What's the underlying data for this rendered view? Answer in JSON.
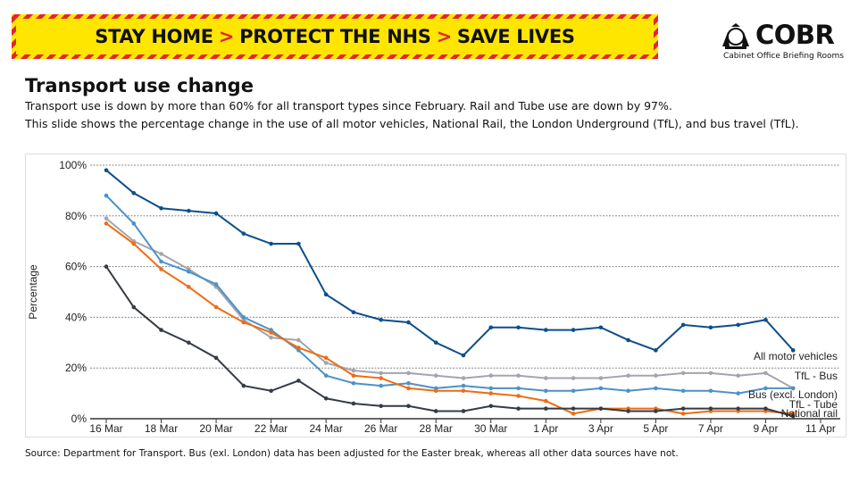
{
  "banner": {
    "part1": "STAY HOME",
    "part2": "PROTECT THE NHS",
    "part3": "SAVE LIVES",
    "separator": ">"
  },
  "logo": {
    "title": "COBR",
    "subtitle": "Cabinet Office Briefing Rooms"
  },
  "header": {
    "title": "Transport use change",
    "line1": "Transport use is down by more than 60% for all transport types since February. Rail and Tube use are down by 97%.",
    "line2": "This slide shows the percentage change in the use of all motor vehicles, National Rail, the London Underground (TfL), and bus travel (TfL)."
  },
  "source": "Source: Department for Transport. Bus (exl. London) data has been adjusted for the Easter break, whereas all other data sources have not.",
  "chart_data": {
    "type": "line",
    "title": "",
    "xlabel": "",
    "ylabel": "Percentage",
    "ylim": [
      0,
      100
    ],
    "yticks": [
      "0%",
      "20%",
      "40%",
      "60%",
      "80%",
      "100%"
    ],
    "xticks": [
      "16 Mar",
      "18 Mar",
      "20 Mar",
      "22 Mar",
      "24 Mar",
      "26 Mar",
      "28 Mar",
      "30 Mar",
      "1 Apr",
      "3 Apr",
      "5 Apr",
      "7 Apr",
      "9 Apr",
      "11 Apr"
    ],
    "grid": true,
    "x": [
      "16 Mar",
      "17 Mar",
      "18 Mar",
      "19 Mar",
      "20 Mar",
      "21 Mar",
      "22 Mar",
      "23 Mar",
      "24 Mar",
      "25 Mar",
      "26 Mar",
      "27 Mar",
      "28 Mar",
      "29 Mar",
      "30 Mar",
      "31 Mar",
      "1 Apr",
      "2 Apr",
      "3 Apr",
      "4 Apr",
      "5 Apr",
      "6 Apr",
      "7 Apr",
      "8 Apr",
      "9 Apr",
      "10 Apr"
    ],
    "series": [
      {
        "name": "All motor vehicles",
        "color": "#0d4e8b",
        "values": [
          98,
          89,
          83,
          82,
          81,
          73,
          69,
          69,
          49,
          42,
          39,
          38,
          30,
          25,
          36,
          36,
          35,
          35,
          36,
          31,
          27,
          37,
          36,
          37,
          39,
          27
        ]
      },
      {
        "name": "TfL - Bus",
        "color": "#a3a5ae",
        "values": [
          79,
          70,
          65,
          59,
          52,
          39,
          32,
          31,
          22,
          19,
          18,
          18,
          17,
          16,
          17,
          17,
          16,
          16,
          16,
          17,
          17,
          18,
          18,
          17,
          18,
          12
        ]
      },
      {
        "name": "Bus (excl. London)",
        "color": "#4b92c8",
        "values": [
          88,
          77,
          62,
          58,
          53,
          40,
          35,
          27,
          17,
          14,
          13,
          14,
          12,
          13,
          12,
          12,
          11,
          11,
          12,
          11,
          12,
          11,
          11,
          10,
          12,
          12
        ]
      },
      {
        "name": "TfL - Tube",
        "color": "#ef6c12",
        "values": [
          77,
          69,
          59,
          52,
          44,
          38,
          34,
          28,
          24,
          17,
          16,
          12,
          11,
          11,
          10,
          9,
          7,
          2,
          4,
          4,
          4,
          2,
          3,
          3,
          3,
          2
        ]
      },
      {
        "name": "National rail",
        "color": "#353b45",
        "values": [
          60,
          44,
          35,
          30,
          24,
          13,
          11,
          15,
          8,
          6,
          5,
          5,
          3,
          3,
          5,
          4,
          4,
          4,
          4,
          3,
          3,
          4,
          4,
          4,
          4,
          1
        ]
      }
    ]
  }
}
